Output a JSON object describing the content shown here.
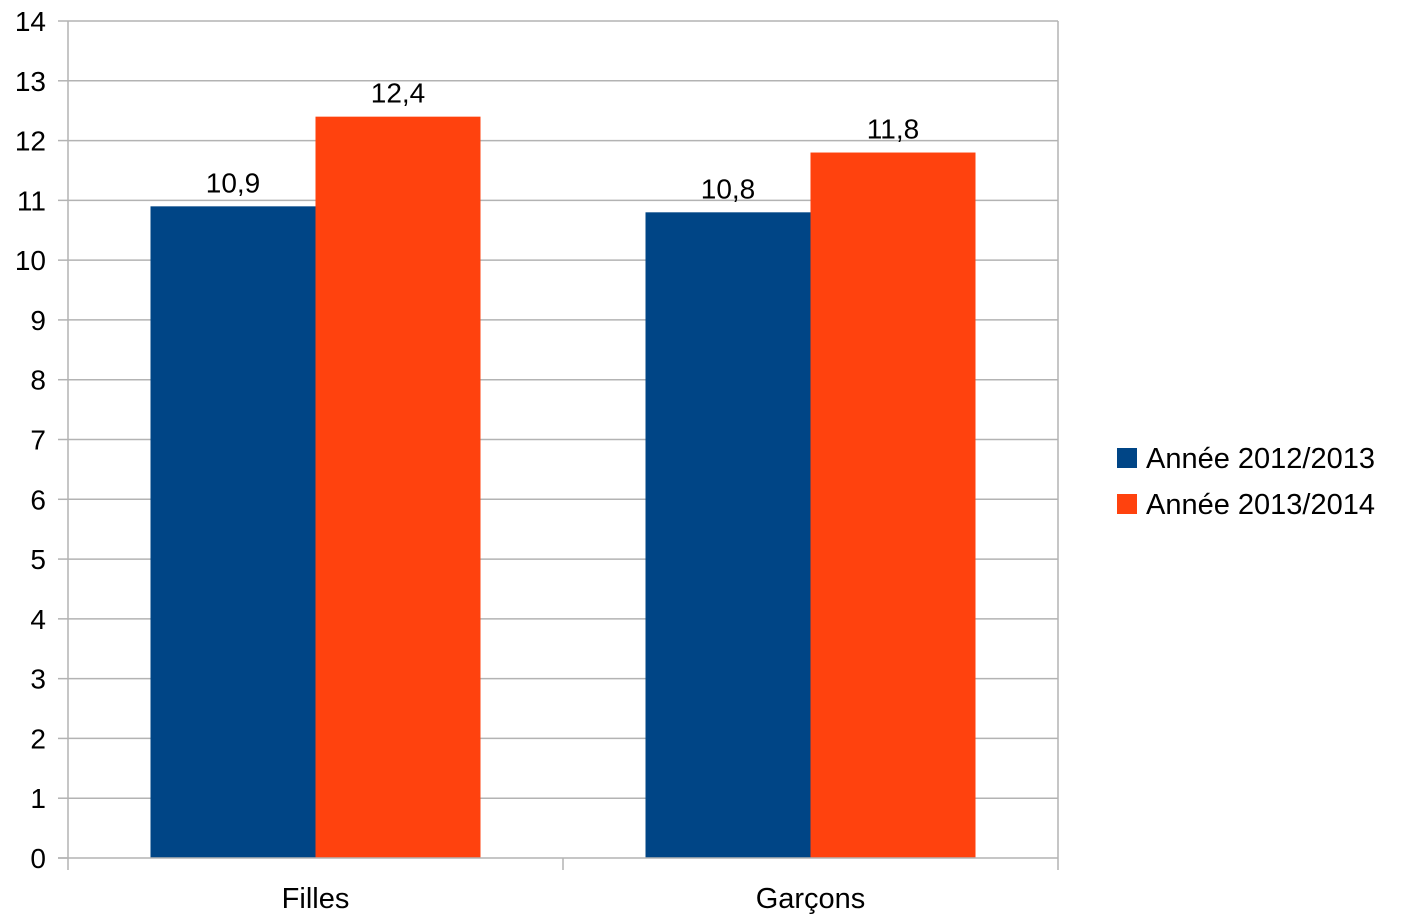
{
  "chart_data": {
    "type": "bar",
    "categories": [
      "Filles",
      "Garçons"
    ],
    "series": [
      {
        "name": "Année 2012/2013",
        "values": [
          10.9,
          10.8
        ],
        "value_labels": [
          "10,9",
          "10,8"
        ],
        "color": "#004586"
      },
      {
        "name": "Année 2013/2014",
        "values": [
          12.4,
          11.8
        ],
        "value_labels": [
          "12,4",
          "11,8"
        ],
        "color": "#ff420e"
      }
    ],
    "title": "",
    "xlabel": "",
    "ylabel": "",
    "ylim": [
      0,
      14
    ],
    "yticks": [
      0,
      1,
      2,
      3,
      4,
      5,
      6,
      7,
      8,
      9,
      10,
      11,
      12,
      13,
      14
    ],
    "grid": true,
    "gridline_color": "#b3b3b3",
    "legend_position": "right"
  }
}
